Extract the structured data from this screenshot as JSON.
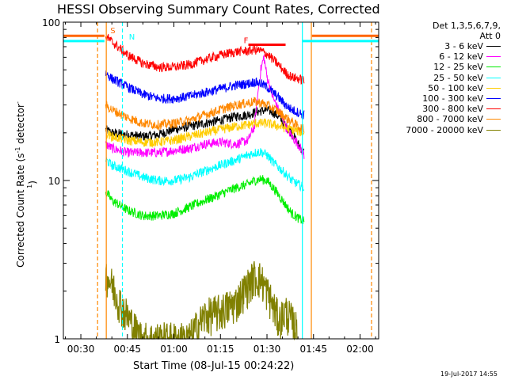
{
  "chart_data": {
    "type": "line",
    "title": "HESSI Observing Summary Count Rates, Corrected",
    "xlabel": "Start Time (08-Jul-15 00:24:22)",
    "ylabel_main": "Corrected Count Rate (s",
    "ylabel_sup1": "-1",
    "ylabel_mid": " detector",
    "ylabel_sup2": "-1",
    "ylabel_end": ")",
    "yscale": "log",
    "ylim": [
      1,
      100
    ],
    "xlim_minutes": [
      24.37,
      126
    ],
    "x_ticks": [
      {
        "label": "00:30",
        "minute": 30
      },
      {
        "label": "00:45",
        "minute": 45
      },
      {
        "label": "01:00",
        "minute": 60
      },
      {
        "label": "01:15",
        "minute": 75
      },
      {
        "label": "01:30",
        "minute": 90
      },
      {
        "label": "01:45",
        "minute": 105
      },
      {
        "label": "02:00",
        "minute": 120
      }
    ],
    "y_ticks": [
      {
        "label": "100",
        "value": 100
      },
      {
        "label": "10",
        "value": 10
      },
      {
        "label": "1",
        "value": 1
      }
    ],
    "legend_header": [
      "Det 1,3,5,6,7,9,",
      "Att 0"
    ],
    "series": [
      {
        "name": "3 - 6 keV",
        "color": "#000000",
        "x": [
          38,
          40,
          45,
          50,
          55,
          60,
          65,
          70,
          75,
          80,
          84,
          86,
          88,
          90,
          92,
          94,
          96,
          98,
          100,
          102
        ],
        "y": [
          21,
          20,
          19.5,
          19,
          19.5,
          21,
          22,
          23,
          24,
          25.5,
          26,
          27,
          27.5,
          28,
          27,
          25,
          22,
          20,
          17,
          15
        ]
      },
      {
        "name": "6 - 12 keV",
        "color": "#ff00ff",
        "x": [
          38,
          40,
          45,
          50,
          55,
          60,
          65,
          70,
          75,
          80,
          84,
          86,
          87,
          88,
          89,
          90,
          92,
          94,
          96,
          98,
          100,
          102
        ],
        "y": [
          17,
          16,
          15,
          15,
          15,
          15.5,
          16,
          17,
          17.5,
          17,
          18,
          22,
          34,
          50,
          60,
          45,
          33,
          27,
          22,
          19,
          17,
          14.5
        ]
      },
      {
        "name": "12 - 25 keV",
        "color": "#00ee00",
        "x": [
          38,
          40,
          45,
          50,
          55,
          60,
          65,
          70,
          75,
          80,
          84,
          86,
          88,
          90,
          92,
          94,
          96,
          98,
          100,
          102
        ],
        "y": [
          8.5,
          7.5,
          6.5,
          6,
          6,
          6.2,
          6.8,
          7.5,
          8.2,
          9,
          9.5,
          10,
          10.2,
          10,
          9,
          8,
          7,
          6.2,
          5.8,
          5.5
        ]
      },
      {
        "name": "25 - 50 keV",
        "color": "#00ffff",
        "x": [
          38,
          40,
          45,
          50,
          55,
          60,
          65,
          70,
          75,
          80,
          84,
          86,
          88,
          90,
          92,
          94,
          96,
          98,
          100,
          102
        ],
        "y": [
          13.5,
          12.5,
          11.5,
          10.5,
          10,
          10,
          10.5,
          11.5,
          12.5,
          13.5,
          14.5,
          15,
          15.2,
          14.5,
          13,
          12,
          11,
          10,
          9.5,
          9
        ]
      },
      {
        "name": "50 - 100 keV",
        "color": "#ffcc00",
        "x": [
          38,
          40,
          45,
          50,
          55,
          60,
          65,
          70,
          75,
          80,
          84,
          86,
          88,
          90,
          92,
          94,
          96,
          98,
          100,
          102
        ],
        "y": [
          20,
          19,
          18,
          17.5,
          17.5,
          18,
          19,
          20,
          21,
          22,
          22.5,
          23,
          23,
          23,
          22.5,
          22,
          21.5,
          21,
          20.5,
          20
        ]
      },
      {
        "name": "100 - 300 keV",
        "color": "#0000ff",
        "x": [
          38,
          40,
          45,
          50,
          55,
          60,
          65,
          70,
          75,
          80,
          84,
          86,
          88,
          90,
          92,
          94,
          96,
          98,
          100,
          102
        ],
        "y": [
          48,
          44,
          39,
          35,
          33,
          33,
          34,
          36,
          38,
          40,
          41,
          42,
          41,
          39,
          36,
          33,
          30,
          28,
          27,
          26
        ]
      },
      {
        "name": "300 - 800 keV",
        "color": "#ff0000",
        "x": [
          38,
          40,
          45,
          50,
          55,
          60,
          65,
          70,
          75,
          80,
          84,
          86,
          88,
          90,
          92,
          94,
          96,
          98,
          100,
          102
        ],
        "y": [
          82,
          75,
          62,
          55,
          52,
          52,
          54,
          58,
          62,
          65,
          66,
          67,
          66,
          63,
          58,
          53,
          48,
          45,
          44,
          43
        ]
      },
      {
        "name": "800 - 7000 keV",
        "color": "#ff8800",
        "x": [
          38,
          40,
          45,
          50,
          55,
          60,
          65,
          70,
          75,
          80,
          84,
          86,
          88,
          90,
          92,
          94,
          96,
          98,
          100,
          102
        ],
        "y": [
          30,
          28,
          25,
          23,
          22.5,
          23,
          24,
          26,
          28,
          30,
          31,
          31.5,
          31,
          30,
          28.5,
          27,
          25,
          23.5,
          22,
          21
        ]
      },
      {
        "name": "7000 - 20000 keV",
        "color": "#808000",
        "x": [
          38,
          40,
          42,
          44,
          46,
          48,
          50,
          55,
          60,
          65,
          70,
          75,
          80,
          84,
          86,
          88,
          90,
          92,
          94,
          96,
          98,
          100
        ],
        "y": [
          2.6,
          2.2,
          1.8,
          1.5,
          1.3,
          1.1,
          1,
          1,
          1,
          1,
          1.4,
          1.5,
          1.7,
          2.2,
          2.5,
          2.4,
          2.0,
          1.6,
          1.3,
          1.5,
          1.3,
          1.1
        ]
      }
    ],
    "annotations": {
      "markers": [
        "S",
        "N",
        "F"
      ],
      "satellite_intervals": [
        {
          "start_minute": 24.37,
          "end_minute": 37.6,
          "value": 76
        },
        {
          "start_minute": 101.5,
          "end_minute": 126,
          "value": 76
        }
      ],
      "saa_intervals": [
        {
          "start_minute": 24.37,
          "end_minute": 37.6,
          "value": 82
        },
        {
          "start_minute": 104.5,
          "end_minute": 126,
          "value": 82
        }
      ],
      "flare_interval": {
        "start_minute": 84,
        "end_minute": 96,
        "value": 72
      },
      "vertical_lines": [
        {
          "minute": 35.4,
          "style": "dashed",
          "color": "#ff8800"
        },
        {
          "minute": 38.2,
          "style": "solid",
          "color": "#ff8800"
        },
        {
          "minute": 43.4,
          "style": "dashed",
          "color": "#00ffff"
        },
        {
          "minute": 101.4,
          "style": "solid",
          "color": "#00ffff"
        },
        {
          "minute": 104.3,
          "style": "solid",
          "color": "#ff8800"
        },
        {
          "minute": 123.7,
          "style": "dashed",
          "color": "#ff8800"
        }
      ]
    },
    "footer": "19-Jul-2017 14:55"
  }
}
